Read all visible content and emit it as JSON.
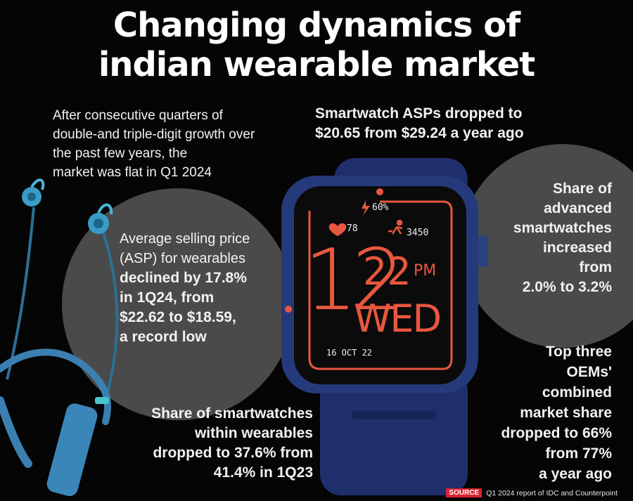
{
  "title": {
    "line1": "Changing dynamics of",
    "line2": "indian wearable market"
  },
  "intro": {
    "line1": "After consecutive quarters of",
    "line2": "double-and triple-digit growth over",
    "line3": "the past few years, the",
    "line4": "market was flat in Q1 2024"
  },
  "asp_wearables": {
    "line1": "Average selling price",
    "line2": "(ASP) for wearables",
    "line3": "declined by 17.8%",
    "line4": "in 1Q24, from",
    "line5": "$22.62 to $18.59,",
    "line6": "a record low"
  },
  "smartwatch_asp": {
    "line1": "Smartwatch ASPs dropped to",
    "line2": "$20.65 from $29.24 a year ago"
  },
  "advanced_share": {
    "line1": "Share of",
    "line2": "advanced",
    "line3": "smartwatches",
    "line4": "increased",
    "line5": "from",
    "line6": "2.0% to 3.2%"
  },
  "smartwatch_share": {
    "line1": "Share of smartwatches",
    "line2": "within wearables",
    "line3": "dropped to 37.6% from",
    "line4": "41.4% in 1Q23"
  },
  "oem_share": {
    "line1": "Top three",
    "line2": "OEMs'",
    "line3": "combined",
    "line4": "market share",
    "line5": "dropped to 66%",
    "line6": "from 77%",
    "line7": "a year ago"
  },
  "watch_face": {
    "battery": "60%",
    "heart": "78",
    "steps": "3450",
    "hour": "12",
    "minute": "22",
    "ampm": "PM",
    "day": "WED",
    "date": "16 OCT 22"
  },
  "source": {
    "badge": "SOURCE",
    "text": "Q1 2024 report of IDC and Counterpoint"
  },
  "colors": {
    "background": "#050505",
    "circle": "#4a4a4a",
    "watch_strap": "#1f2f6b",
    "watch_accent": "#e8573f",
    "earphone": "#3a8fc0"
  }
}
